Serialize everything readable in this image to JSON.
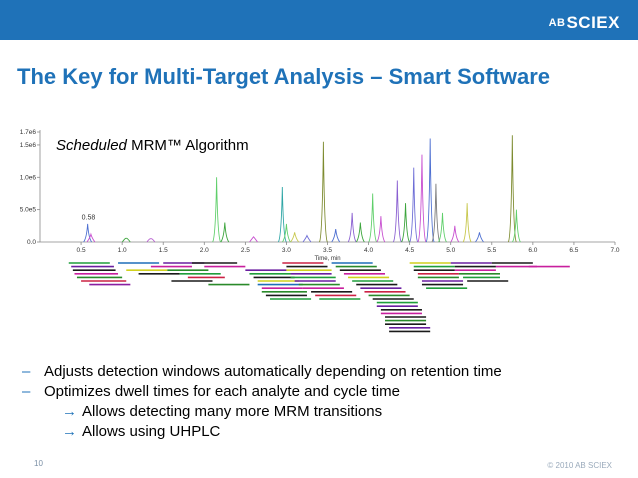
{
  "brand": {
    "prefix": "AB",
    "name": "SCIEX"
  },
  "slide": {
    "title": "The Key for Multi-Target Analysis – Smart Software",
    "page_number": "10",
    "copyright": "© 2010 AB SCIEX"
  },
  "chart_data": {
    "type": "line",
    "title_italic": "Scheduled",
    "title_rest": " MRM™ Algorithm",
    "xlabel": "Time, min",
    "ylabel": "",
    "xlim": [
      0.0,
      7.0
    ],
    "ylim": [
      0,
      1700000
    ],
    "x_ticks": [
      "0.5",
      "1.0",
      "1.5",
      "2.0",
      "2.5",
      "3.0",
      "3.5",
      "4.0",
      "4.5",
      "5.0",
      "5.5",
      "6.0",
      "6.5",
      "7.0"
    ],
    "y_ticks": [
      "0.0",
      "5.0e5",
      "1.0e6",
      "1.5e6",
      "1.7e6"
    ],
    "y_tick_values": [
      0,
      500000,
      1000000,
      1500000,
      1700000
    ],
    "annotation": {
      "text": "0.58",
      "x": 0.58,
      "y": 350000
    },
    "peaks": [
      {
        "x": 0.58,
        "y": 280000,
        "color": "#4d6fd1"
      },
      {
        "x": 0.62,
        "y": 120000,
        "color": "#c84fd0"
      },
      {
        "x": 1.05,
        "y": 60000,
        "color": "#3da53d"
      },
      {
        "x": 1.35,
        "y": 50000,
        "color": "#b65ccf"
      },
      {
        "x": 2.15,
        "y": 1000000,
        "color": "#5fcf6a"
      },
      {
        "x": 2.25,
        "y": 300000,
        "color": "#3da53d"
      },
      {
        "x": 2.6,
        "y": 80000,
        "color": "#c84fd0"
      },
      {
        "x": 2.95,
        "y": 850000,
        "color": "#2fa6a6"
      },
      {
        "x": 3.0,
        "y": 280000,
        "color": "#5fcf6a"
      },
      {
        "x": 3.1,
        "y": 150000,
        "color": "#c8c84f"
      },
      {
        "x": 3.25,
        "y": 100000,
        "color": "#6d6dd6"
      },
      {
        "x": 3.45,
        "y": 1550000,
        "color": "#7d8b2f"
      },
      {
        "x": 3.6,
        "y": 200000,
        "color": "#4d6fd1"
      },
      {
        "x": 3.8,
        "y": 450000,
        "color": "#8a5fd1"
      },
      {
        "x": 3.9,
        "y": 300000,
        "color": "#3da53d"
      },
      {
        "x": 4.05,
        "y": 750000,
        "color": "#5fcf6a"
      },
      {
        "x": 4.15,
        "y": 400000,
        "color": "#c84fd0"
      },
      {
        "x": 4.35,
        "y": 950000,
        "color": "#8a5fd1"
      },
      {
        "x": 4.45,
        "y": 600000,
        "color": "#3da53d"
      },
      {
        "x": 4.55,
        "y": 1150000,
        "color": "#6d6dd6"
      },
      {
        "x": 4.65,
        "y": 1350000,
        "color": "#c84fd0"
      },
      {
        "x": 4.75,
        "y": 1600000,
        "color": "#4d6fd1"
      },
      {
        "x": 4.82,
        "y": 900000,
        "color": "#7a7a7a"
      },
      {
        "x": 4.9,
        "y": 450000,
        "color": "#5fcf6a"
      },
      {
        "x": 5.05,
        "y": 250000,
        "color": "#c84fd0"
      },
      {
        "x": 5.2,
        "y": 600000,
        "color": "#c8c84f"
      },
      {
        "x": 5.35,
        "y": 150000,
        "color": "#4d6fd1"
      },
      {
        "x": 5.75,
        "y": 1650000,
        "color": "#7d8b2f"
      },
      {
        "x": 5.8,
        "y": 500000,
        "color": "#5fcf6a"
      }
    ],
    "windows": [
      {
        "start": 0.35,
        "end": 0.85,
        "row": 0,
        "color": "#1f9e3a"
      },
      {
        "start": 0.38,
        "end": 0.9,
        "row": 1,
        "color": "#6a1fa0"
      },
      {
        "start": 0.4,
        "end": 0.92,
        "row": 2,
        "color": "#1a1a1a"
      },
      {
        "start": 0.42,
        "end": 0.95,
        "row": 3,
        "color": "#c81f9e"
      },
      {
        "start": 0.45,
        "end": 1.0,
        "row": 4,
        "color": "#2a8a2a"
      },
      {
        "start": 0.5,
        "end": 1.05,
        "row": 5,
        "color": "#cc2244"
      },
      {
        "start": 0.6,
        "end": 1.1,
        "row": 6,
        "color": "#8a1fa0"
      },
      {
        "start": 0.95,
        "end": 1.45,
        "row": 0,
        "color": "#1f6fb8"
      },
      {
        "start": 1.05,
        "end": 1.55,
        "row": 2,
        "color": "#d1d11f"
      },
      {
        "start": 1.2,
        "end": 1.7,
        "row": 3,
        "color": "#1a1a1a"
      },
      {
        "start": 1.35,
        "end": 1.85,
        "row": 1,
        "color": "#c81f9e"
      },
      {
        "start": 1.5,
        "end": 2.0,
        "row": 0,
        "color": "#6a1fa0"
      },
      {
        "start": 1.55,
        "end": 2.05,
        "row": 2,
        "color": "#2a8a2a"
      },
      {
        "start": 1.6,
        "end": 2.1,
        "row": 5,
        "color": "#1a1a1a"
      },
      {
        "start": 1.7,
        "end": 2.2,
        "row": 3,
        "color": "#1f9e3a"
      },
      {
        "start": 1.8,
        "end": 2.25,
        "row": 4,
        "color": "#cc2244"
      },
      {
        "start": 1.85,
        "end": 2.4,
        "row": 0,
        "color": "#1a1a1a"
      },
      {
        "start": 2.0,
        "end": 2.5,
        "row": 1,
        "color": "#c81f9e"
      },
      {
        "start": 2.05,
        "end": 2.55,
        "row": 6,
        "color": "#2a8a2a"
      },
      {
        "start": 2.5,
        "end": 3.0,
        "row": 2,
        "color": "#6a1fa0"
      },
      {
        "start": 2.55,
        "end": 3.05,
        "row": 3,
        "color": "#1f9e3a"
      },
      {
        "start": 2.6,
        "end": 3.1,
        "row": 4,
        "color": "#1a1a1a"
      },
      {
        "start": 2.65,
        "end": 3.15,
        "row": 5,
        "color": "#d1d11f"
      },
      {
        "start": 2.65,
        "end": 3.2,
        "row": 6,
        "color": "#1f6fb8"
      },
      {
        "start": 2.7,
        "end": 3.2,
        "row": 7,
        "color": "#c81f9e"
      },
      {
        "start": 2.7,
        "end": 3.25,
        "row": 8,
        "color": "#2a8a2a"
      },
      {
        "start": 2.75,
        "end": 3.25,
        "row": 9,
        "color": "#1a1a1a"
      },
      {
        "start": 2.8,
        "end": 3.3,
        "row": 10,
        "color": "#1f9e3a"
      },
      {
        "start": 2.95,
        "end": 3.45,
        "row": 0,
        "color": "#cc2244"
      },
      {
        "start": 3.0,
        "end": 3.5,
        "row": 1,
        "color": "#1a1a1a"
      },
      {
        "start": 3.0,
        "end": 3.55,
        "row": 2,
        "color": "#d1d11f"
      },
      {
        "start": 3.05,
        "end": 3.55,
        "row": 3,
        "color": "#6a1fa0"
      },
      {
        "start": 3.05,
        "end": 3.6,
        "row": 4,
        "color": "#1f9e3a"
      },
      {
        "start": 3.1,
        "end": 3.6,
        "row": 5,
        "color": "#6a1fa0"
      },
      {
        "start": 3.15,
        "end": 3.65,
        "row": 6,
        "color": "#2a8a2a"
      },
      {
        "start": 3.2,
        "end": 3.7,
        "row": 7,
        "color": "#c81f9e"
      },
      {
        "start": 3.3,
        "end": 3.8,
        "row": 8,
        "color": "#1a1a1a"
      },
      {
        "start": 3.35,
        "end": 3.85,
        "row": 9,
        "color": "#cc2244"
      },
      {
        "start": 3.4,
        "end": 3.9,
        "row": 10,
        "color": "#1f9e3a"
      },
      {
        "start": 3.55,
        "end": 4.05,
        "row": 0,
        "color": "#1f6fb8"
      },
      {
        "start": 3.6,
        "end": 4.1,
        "row": 1,
        "color": "#2a8a2a"
      },
      {
        "start": 3.65,
        "end": 4.15,
        "row": 2,
        "color": "#1a1a1a"
      },
      {
        "start": 3.7,
        "end": 4.2,
        "row": 3,
        "color": "#c81f9e"
      },
      {
        "start": 3.75,
        "end": 4.25,
        "row": 4,
        "color": "#d1d11f"
      },
      {
        "start": 3.8,
        "end": 4.3,
        "row": 5,
        "color": "#1f9e3a"
      },
      {
        "start": 3.85,
        "end": 4.35,
        "row": 6,
        "color": "#1a1a1a"
      },
      {
        "start": 3.9,
        "end": 4.4,
        "row": 7,
        "color": "#6a1fa0"
      },
      {
        "start": 3.95,
        "end": 4.45,
        "row": 8,
        "color": "#cc2244"
      },
      {
        "start": 4.0,
        "end": 4.5,
        "row": 9,
        "color": "#2a8a2a"
      },
      {
        "start": 4.05,
        "end": 4.55,
        "row": 10,
        "color": "#1a1a1a"
      },
      {
        "start": 4.1,
        "end": 4.6,
        "row": 11,
        "color": "#1f9e3a"
      },
      {
        "start": 4.1,
        "end": 4.6,
        "row": 12,
        "color": "#6a1fa0"
      },
      {
        "start": 4.15,
        "end": 4.65,
        "row": 13,
        "color": "#1a1a1a"
      },
      {
        "start": 4.15,
        "end": 4.65,
        "row": 14,
        "color": "#c81f9e"
      },
      {
        "start": 4.2,
        "end": 4.7,
        "row": 15,
        "color": "#1a1a1a"
      },
      {
        "start": 4.2,
        "end": 4.7,
        "row": 16,
        "color": "#2a8a2a"
      },
      {
        "start": 4.2,
        "end": 4.7,
        "row": 17,
        "color": "#1a1a1a"
      },
      {
        "start": 4.25,
        "end": 4.75,
        "row": 18,
        "color": "#6a1fa0"
      },
      {
        "start": 4.25,
        "end": 4.75,
        "row": 19,
        "color": "#1a1a1a"
      },
      {
        "start": 4.5,
        "end": 5.0,
        "row": 0,
        "color": "#d1d11f"
      },
      {
        "start": 4.55,
        "end": 5.05,
        "row": 1,
        "color": "#1f9e3a"
      },
      {
        "start": 4.55,
        "end": 5.05,
        "row": 2,
        "color": "#1a1a1a"
      },
      {
        "start": 4.6,
        "end": 5.1,
        "row": 3,
        "color": "#cc2244"
      },
      {
        "start": 4.6,
        "end": 5.1,
        "row": 4,
        "color": "#2a8a2a"
      },
      {
        "start": 4.65,
        "end": 5.15,
        "row": 5,
        "color": "#6a1fa0"
      },
      {
        "start": 4.65,
        "end": 5.15,
        "row": 6,
        "color": "#1a1a1a"
      },
      {
        "start": 4.7,
        "end": 5.2,
        "row": 7,
        "color": "#1f9e3a"
      },
      {
        "start": 5.0,
        "end": 5.5,
        "row": 0,
        "color": "#6a1fa0"
      },
      {
        "start": 5.05,
        "end": 5.55,
        "row": 1,
        "color": "#1a1a1a"
      },
      {
        "start": 5.05,
        "end": 5.55,
        "row": 2,
        "color": "#c81f9e"
      },
      {
        "start": 5.1,
        "end": 5.6,
        "row": 3,
        "color": "#2a8a2a"
      },
      {
        "start": 5.15,
        "end": 5.6,
        "row": 4,
        "color": "#1f9e3a"
      },
      {
        "start": 5.2,
        "end": 5.7,
        "row": 5,
        "color": "#1a1a1a"
      },
      {
        "start": 5.5,
        "end": 6.0,
        "row": 0,
        "color": "#1a1a1a"
      },
      {
        "start": 5.55,
        "end": 6.05,
        "row": 1,
        "color": "#c81f9e"
      },
      {
        "start": 5.95,
        "end": 6.45,
        "row": 1,
        "color": "#c81f9e"
      }
    ]
  },
  "bullets": [
    {
      "dash": "–",
      "text": "Adjusts detection windows automatically depending on retention time"
    },
    {
      "dash": "–",
      "text": "Optimizes dwell times for each analyte and cycle time"
    }
  ],
  "sub_bullets": [
    {
      "arrow": "→",
      "text": "Allows detecting many more MRM transitions"
    },
    {
      "arrow": "→",
      "text": "Allows using UHPLC"
    }
  ]
}
